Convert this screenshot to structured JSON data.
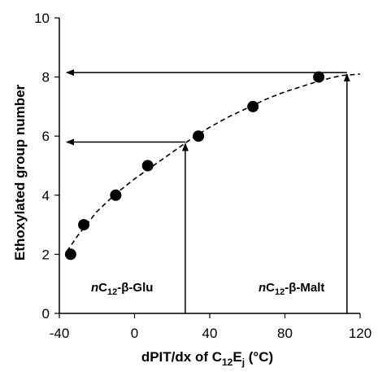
{
  "chart_data": {
    "type": "scatter",
    "xlabel": {
      "prefix": "dPIT/dx of C",
      "sub1": "12",
      "mid": "E",
      "sub2": "j",
      "suffix": " (°C)"
    },
    "ylabel": "Ethoxylated group number",
    "xlim": [
      -40,
      120
    ],
    "ylim": [
      0,
      10
    ],
    "x_ticks": [
      -40,
      0,
      40,
      80,
      120
    ],
    "y_ticks": [
      0,
      2,
      4,
      6,
      8,
      10
    ],
    "grid": false,
    "series": [
      {
        "x": [
          -34,
          -27,
          -10,
          7,
          34,
          63,
          98
        ],
        "y": [
          2,
          3,
          4,
          5,
          6,
          7,
          8
        ]
      }
    ],
    "fit_curve": {
      "style": "dashed",
      "x": [
        -36,
        -30,
        -20,
        -10,
        0,
        10,
        20,
        30,
        40,
        50,
        60,
        70,
        80,
        90,
        100,
        110,
        120
      ],
      "y": [
        2.1,
        2.65,
        3.45,
        4.05,
        4.55,
        5.0,
        5.45,
        5.9,
        6.3,
        6.65,
        6.95,
        7.25,
        7.5,
        7.7,
        7.9,
        8.05,
        8.1
      ]
    },
    "annotations": [
      {
        "italic": "n",
        "main": "C",
        "sub": "12",
        "rest": "-β-Glu",
        "arrow_x": 27,
        "arrow_y": 5.8
      },
      {
        "italic": "n",
        "main": "C",
        "sub": "12",
        "rest": "-β-Malt",
        "arrow_x": 113,
        "arrow_y": 8.15
      }
    ]
  }
}
